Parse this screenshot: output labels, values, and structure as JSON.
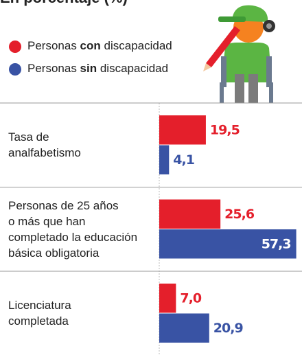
{
  "chart_data": {
    "type": "bar",
    "orientation": "horizontal",
    "title": "En porcentaje (%)",
    "categories": [
      "Tasa de\nanalfabetismo",
      "Personas de 25 años\no más que han\ncompletado la educación\nbásica obligatoria",
      "Licenciatura\ncompletada"
    ],
    "series": [
      {
        "name": "Personas con discapacidad",
        "color": "#e41f2b",
        "values": [
          19.5,
          25.6,
          7.0
        ],
        "value_labels": [
          "19,5",
          "25,6",
          "7,0"
        ]
      },
      {
        "name": "Personas sin discapacidad",
        "color": "#3953a4",
        "values": [
          4.1,
          57.3,
          20.9
        ],
        "value_labels": [
          "4,1",
          "57,3",
          "20,9"
        ]
      }
    ],
    "xlim": [
      0,
      60
    ],
    "legend": "top-left"
  }
}
